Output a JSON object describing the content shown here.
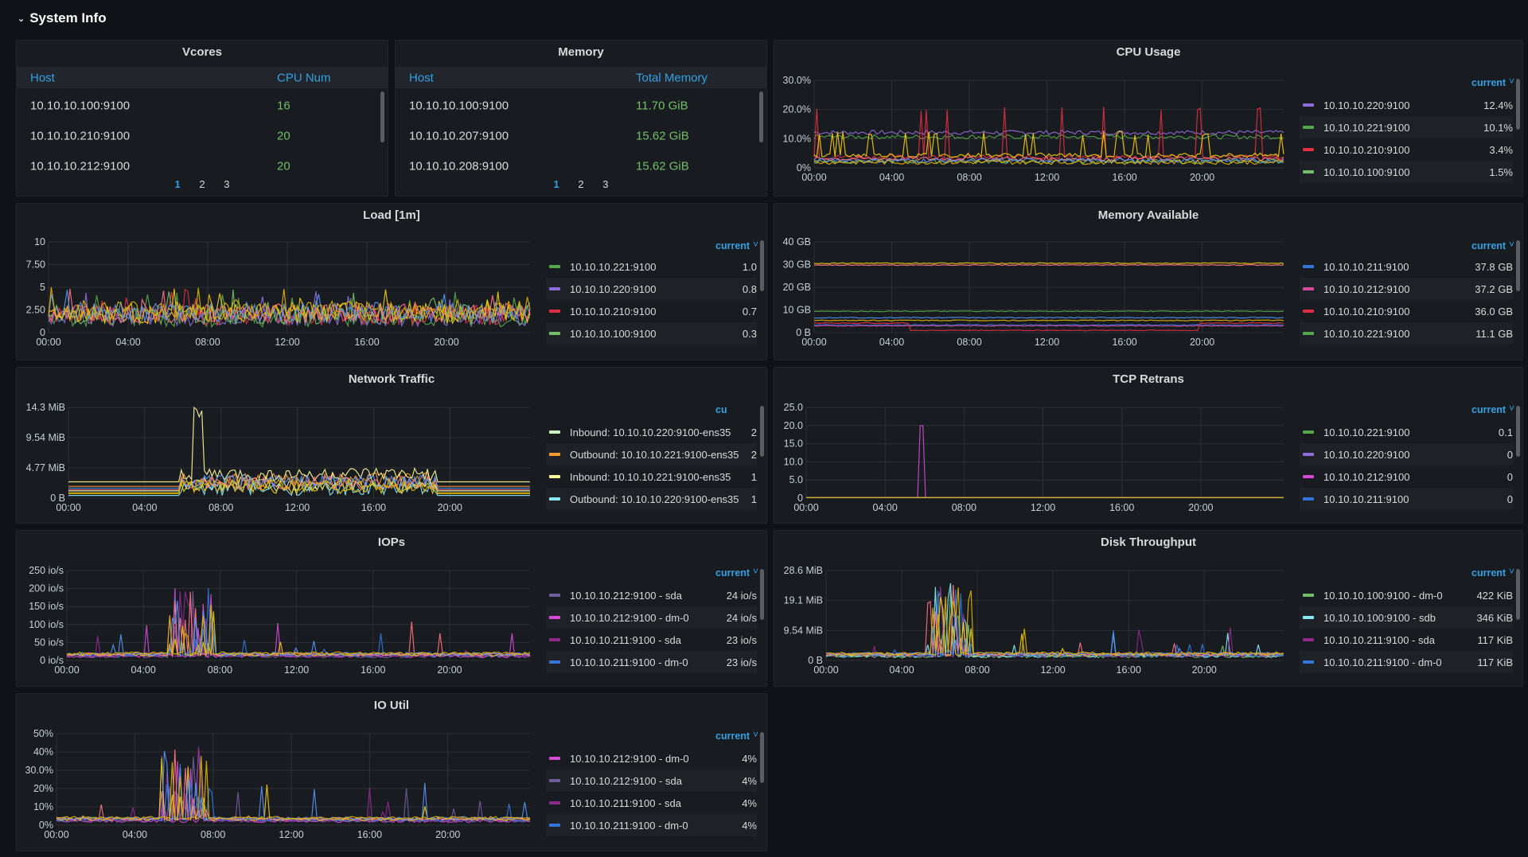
{
  "row": {
    "title": "System Info"
  },
  "vcores": {
    "title": "Vcores",
    "columns": [
      "Host",
      "CPU Num"
    ],
    "rows": [
      [
        "10.10.10.100:9100",
        "16"
      ],
      [
        "10.10.10.210:9100",
        "20"
      ],
      [
        "10.10.10.212:9100",
        "20"
      ]
    ],
    "pages": [
      "1",
      "2",
      "3"
    ]
  },
  "memory": {
    "title": "Memory",
    "columns": [
      "Host",
      "Total Memory"
    ],
    "rows": [
      [
        "10.10.10.100:9100",
        "11.70 GiB"
      ],
      [
        "10.10.10.207:9100",
        "15.62 GiB"
      ],
      [
        "10.10.10.208:9100",
        "15.62 GiB"
      ]
    ],
    "pages": [
      "1",
      "2",
      "3"
    ]
  },
  "legend_header": "current",
  "panels": {
    "cpu": {
      "title": "CPU Usage",
      "x_ticks": [
        "00:00",
        "04:00",
        "08:00",
        "12:00",
        "16:00",
        "20:00"
      ],
      "y_ticks": [
        "0%",
        "10.0%",
        "20.0%",
        "30.0%"
      ],
      "legend": [
        {
          "name": "10.10.10.220:9100",
          "value": "12.4%",
          "color": "#8f6cd8"
        },
        {
          "name": "10.10.10.221:9100",
          "value": "10.1%",
          "color": "#56a64b"
        },
        {
          "name": "10.10.10.210:9100",
          "value": "3.4%",
          "color": "#e02f44"
        },
        {
          "name": "10.10.10.100:9100",
          "value": "1.5%",
          "color": "#73bf69"
        }
      ]
    },
    "load": {
      "title": "Load [1m]",
      "x_ticks": [
        "00:00",
        "04:00",
        "08:00",
        "12:00",
        "16:00",
        "20:00"
      ],
      "y_ticks": [
        "0",
        "2.50",
        "5",
        "7.50",
        "10"
      ],
      "legend": [
        {
          "name": "10.10.10.221:9100",
          "value": "1.0",
          "color": "#56a64b"
        },
        {
          "name": "10.10.10.220:9100",
          "value": "0.8",
          "color": "#8f6cd8"
        },
        {
          "name": "10.10.10.210:9100",
          "value": "0.7",
          "color": "#e02f44"
        },
        {
          "name": "10.10.10.100:9100",
          "value": "0.3",
          "color": "#73bf69"
        }
      ]
    },
    "memavail": {
      "title": "Memory Available",
      "x_ticks": [
        "00:00",
        "04:00",
        "08:00",
        "12:00",
        "16:00",
        "20:00"
      ],
      "y_ticks": [
        "0 B",
        "10 GB",
        "20 GB",
        "30 GB",
        "40 GB"
      ],
      "legend": [
        {
          "name": "10.10.10.211:9100",
          "value": "37.8 GB",
          "color": "#3274d9"
        },
        {
          "name": "10.10.10.212:9100",
          "value": "37.2 GB",
          "color": "#d44a9f"
        },
        {
          "name": "10.10.10.210:9100",
          "value": "36.0 GB",
          "color": "#e02f44"
        },
        {
          "name": "10.10.10.221:9100",
          "value": "11.1 GB",
          "color": "#56a64b"
        }
      ]
    },
    "network": {
      "title": "Network Traffic",
      "legend_header": "cu",
      "x_ticks": [
        "00:00",
        "04:00",
        "08:00",
        "12:00",
        "16:00",
        "20:00"
      ],
      "y_ticks": [
        "0 B",
        "4.77 MiB",
        "9.54 MiB",
        "14.3 MiB"
      ],
      "legend": [
        {
          "name": "Inbound: 10.10.10.220:9100-ens35",
          "value": "2",
          "color": "#c8f2c2"
        },
        {
          "name": "Outbound: 10.10.10.221:9100-ens35",
          "value": "2",
          "color": "#ff9830"
        },
        {
          "name": "Inbound: 10.10.10.221:9100-ens35",
          "value": "1",
          "color": "#fff899"
        },
        {
          "name": "Outbound: 10.10.10.220:9100-ens35",
          "value": "1",
          "color": "#8ae7f7"
        }
      ]
    },
    "tcp": {
      "title": "TCP Retrans",
      "x_ticks": [
        "00:00",
        "04:00",
        "08:00",
        "12:00",
        "16:00",
        "20:00"
      ],
      "y_ticks": [
        "0",
        "5.0",
        "10.0",
        "15.0",
        "20.0",
        "25.0"
      ],
      "legend": [
        {
          "name": "10.10.10.221:9100",
          "value": "0.1",
          "color": "#56a64b"
        },
        {
          "name": "10.10.10.220:9100",
          "value": "0",
          "color": "#8f6cd8"
        },
        {
          "name": "10.10.10.212:9100",
          "value": "0",
          "color": "#d44ad6"
        },
        {
          "name": "10.10.10.211:9100",
          "value": "0",
          "color": "#3274d9"
        }
      ]
    },
    "iops": {
      "title": "IOPs",
      "x_ticks": [
        "00:00",
        "04:00",
        "08:00",
        "12:00",
        "16:00",
        "20:00"
      ],
      "y_ticks": [
        "0 io/s",
        "50 io/s",
        "100 io/s",
        "150 io/s",
        "200 io/s",
        "250 io/s"
      ],
      "legend": [
        {
          "name": "10.10.10.212:9100 - sda",
          "value": "24 io/s",
          "color": "#705da0"
        },
        {
          "name": "10.10.10.212:9100 - dm-0",
          "value": "24 io/s",
          "color": "#d44ad6"
        },
        {
          "name": "10.10.10.211:9100 - sda",
          "value": "23 io/s",
          "color": "#8e2a8e"
        },
        {
          "name": "10.10.10.211:9100 - dm-0",
          "value": "23 io/s",
          "color": "#3274d9"
        }
      ]
    },
    "disk": {
      "title": "Disk Throughput",
      "x_ticks": [
        "00:00",
        "04:00",
        "08:00",
        "12:00",
        "16:00",
        "20:00"
      ],
      "y_ticks": [
        "0 B",
        "9.54 MiB",
        "19.1 MiB",
        "28.6 MiB"
      ],
      "legend": [
        {
          "name": "10.10.10.100:9100 - dm-0",
          "value": "422 KiB",
          "color": "#73bf69"
        },
        {
          "name": "10.10.10.100:9100 - sdb",
          "value": "346 KiB",
          "color": "#8ae7f7"
        },
        {
          "name": "10.10.10.211:9100 - sda",
          "value": "117 KiB",
          "color": "#8e2a8e"
        },
        {
          "name": "10.10.10.211:9100 - dm-0",
          "value": "117 KiB",
          "color": "#3274d9"
        }
      ]
    },
    "ioutil": {
      "title": "IO Util",
      "x_ticks": [
        "00:00",
        "04:00",
        "08:00",
        "12:00",
        "16:00",
        "20:00"
      ],
      "y_ticks": [
        "0%",
        "10%",
        "20%",
        "30.0%",
        "40%",
        "50%"
      ],
      "legend": [
        {
          "name": "10.10.10.212:9100 - dm-0",
          "value": "4%",
          "color": "#d44ad6"
        },
        {
          "name": "10.10.10.212:9100 - sda",
          "value": "4%",
          "color": "#705da0"
        },
        {
          "name": "10.10.10.211:9100 - sda",
          "value": "4%",
          "color": "#8e2a8e"
        },
        {
          "name": "10.10.10.211:9100 - dm-0",
          "value": "4%",
          "color": "#3274d9"
        }
      ]
    }
  }
}
